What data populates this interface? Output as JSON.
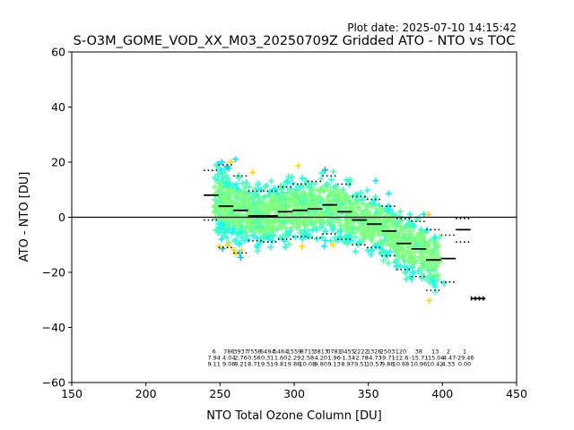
{
  "plot_date": "Plot date: 2025-07-10 14:15:42",
  "chart_data": {
    "type": "scatter",
    "title": "S-O3M_GOME_VOD_XX_M03_20250709Z Gridded ATO - NTO vs TOC",
    "xlabel": "NTO Total Ozone Column [DU]",
    "ylabel": "ATO - NTO [DU]",
    "xlim": [
      150,
      450
    ],
    "ylim": [
      -60,
      60
    ],
    "xticks": [
      150,
      200,
      250,
      300,
      350,
      400,
      450
    ],
    "yticks": [
      -60,
      -40,
      -20,
      0,
      20,
      40,
      60
    ],
    "zero_line": 0,
    "point_colors": [
      "#7fff7f",
      "#4dffb3",
      "#1affe6",
      "#00e5ff",
      "#ffd700",
      "#ffb300",
      "#0000ff",
      "#00bfff"
    ],
    "bins": [
      {
        "x": 244,
        "mean": 8.0,
        "upper": 17.0,
        "lower": -1.0
      },
      {
        "x": 254,
        "mean": 4.0,
        "upper": 19.0,
        "lower": -11.0
      },
      {
        "x": 264,
        "mean": 2.5,
        "upper": 15.0,
        "lower": -13.0
      },
      {
        "x": 274,
        "mean": 0.5,
        "upper": 9.5,
        "lower": -8.5
      },
      {
        "x": 284,
        "mean": 0.5,
        "upper": 9.5,
        "lower": -9.0
      },
      {
        "x": 294,
        "mean": 2.0,
        "upper": 11.0,
        "lower": -8.0
      },
      {
        "x": 304,
        "mean": 2.5,
        "upper": 12.0,
        "lower": -7.0
      },
      {
        "x": 314,
        "mean": 3.0,
        "upper": 13.0,
        "lower": -7.5
      },
      {
        "x": 324,
        "mean": 4.5,
        "upper": 15.0,
        "lower": -6.0
      },
      {
        "x": 334,
        "mean": 2.0,
        "upper": 12.0,
        "lower": -8.0
      },
      {
        "x": 344,
        "mean": -1.0,
        "upper": 7.5,
        "lower": -10.0
      },
      {
        "x": 354,
        "mean": -2.5,
        "upper": 6.5,
        "lower": -11.0
      },
      {
        "x": 364,
        "mean": -5.0,
        "upper": 4.0,
        "lower": -14.0
      },
      {
        "x": 374,
        "mean": -9.5,
        "upper": -0.5,
        "lower": -19.0
      },
      {
        "x": 384,
        "mean": -11.5,
        "upper": -1.5,
        "lower": -21.5
      },
      {
        "x": 394,
        "mean": -15.5,
        "upper": -4.5,
        "lower": -26.5
      },
      {
        "x": 404,
        "mean": -15.0,
        "upper": -6.5,
        "lower": -23.5
      },
      {
        "x": 414,
        "mean": -4.5,
        "upper": -0.5,
        "lower": -9.0
      },
      {
        "x": 424,
        "mean": -29.5,
        "upper": -29.0,
        "lower": -30.0
      }
    ],
    "annotations": [
      {
        "x": 246,
        "n": "6",
        "mean": "7.94",
        "std": "9.11"
      },
      {
        "x": 256,
        "n": "786",
        "mean": "4.04",
        "std": "9.06"
      },
      {
        "x": 264,
        "n": "3937",
        "mean": "2.76",
        "std": "8.21"
      },
      {
        "x": 273,
        "n": "7556",
        "mean": "0.56",
        "std": "8.71"
      },
      {
        "x": 282,
        "n": "6494",
        "mean": "0.31",
        "std": "9.51"
      },
      {
        "x": 291,
        "n": "5464",
        "mean": "1.60",
        "std": "9.81"
      },
      {
        "x": 300,
        "n": "1559",
        "mean": "2.29",
        "std": "9.86"
      },
      {
        "x": 309,
        "n": "8715",
        "mean": "2.58",
        "std": "10.08"
      },
      {
        "x": 318,
        "n": "3813",
        "mean": "4.20",
        "std": "9.80"
      },
      {
        "x": 327,
        "n": "0781",
        "mean": "1.96",
        "std": "9.13"
      },
      {
        "x": 336,
        "n": "0455",
        "mean": "-1.34",
        "std": "8.97"
      },
      {
        "x": 345,
        "n": "2222",
        "mean": "-2.78",
        "std": "9.51"
      },
      {
        "x": 354,
        "n": "1326",
        "mean": "-4.73",
        "std": "10.57"
      },
      {
        "x": 363,
        "n": "2503",
        "mean": "-9.71",
        "std": "9.86"
      },
      {
        "x": 372,
        "n": "120",
        "mean": "-12.6",
        "std": "10.68"
      },
      {
        "x": 384,
        "n": "38",
        "mean": "-15.71",
        "std": "10.96"
      },
      {
        "x": 395,
        "n": "13",
        "mean": "-15.04",
        "std": "10.42"
      },
      {
        "x": 404,
        "n": "2",
        "mean": "-4.47",
        "std": "4.33"
      },
      {
        "x": 415,
        "n": "1",
        "mean": "-29.46",
        "std": "0.00"
      }
    ]
  }
}
